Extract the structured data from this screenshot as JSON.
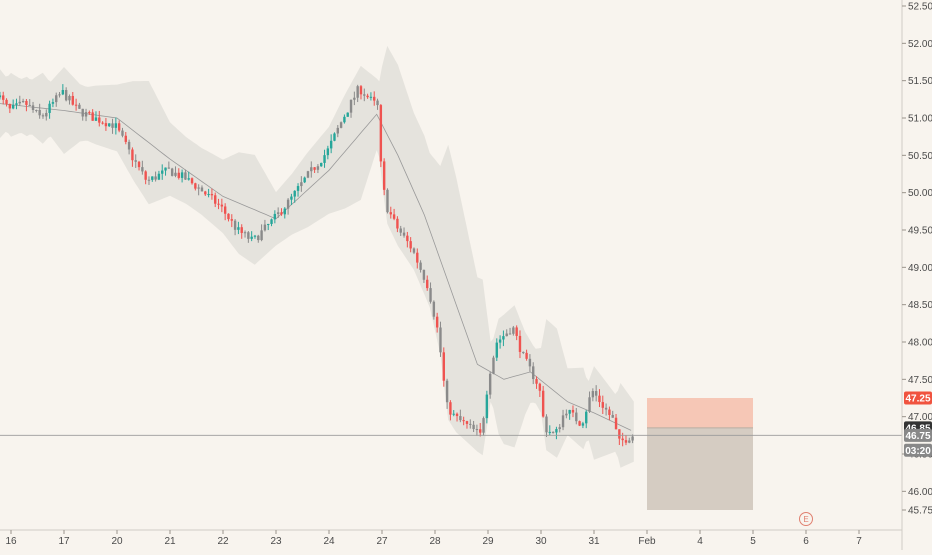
{
  "chart_data": {
    "type": "candlestick",
    "title": "",
    "xlabel": "",
    "ylabel": "",
    "ylim": [
      45.75,
      52.5
    ],
    "grid": false,
    "legend": "none",
    "y_ticks": [
      "52.50",
      "52.00",
      "51.50",
      "51.00",
      "50.50",
      "50.00",
      "49.50",
      "49.00",
      "48.50",
      "48.00",
      "47.50",
      "47.00",
      "46.50",
      "46.00",
      "45.75"
    ],
    "x_ticks": [
      {
        "label": "16",
        "day": 0
      },
      {
        "label": "17",
        "day": 1
      },
      {
        "label": "20",
        "day": 2
      },
      {
        "label": "21",
        "day": 3
      },
      {
        "label": "22",
        "day": 4
      },
      {
        "label": "23",
        "day": 5
      },
      {
        "label": "24",
        "day": 6
      },
      {
        "label": "27",
        "day": 7
      },
      {
        "label": "28",
        "day": 8
      },
      {
        "label": "29",
        "day": 9
      },
      {
        "label": "30",
        "day": 10
      },
      {
        "label": "31",
        "day": 11
      },
      {
        "label": "Feb",
        "day": 12
      },
      {
        "label": "4",
        "day": 13
      },
      {
        "label": "5",
        "day": 14
      },
      {
        "label": "6",
        "day": 15
      },
      {
        "label": "7",
        "day": 16
      }
    ],
    "price_path": [
      [
        -0.3,
        51.4
      ],
      [
        0.0,
        51.1
      ],
      [
        0.3,
        51.2
      ],
      [
        0.6,
        51.0
      ],
      [
        1.0,
        51.35
      ],
      [
        1.3,
        51.1
      ],
      [
        1.6,
        51.0
      ],
      [
        2.0,
        50.9
      ],
      [
        2.3,
        50.5
      ],
      [
        2.6,
        50.15
      ],
      [
        3.0,
        50.3
      ],
      [
        3.3,
        50.2
      ],
      [
        3.6,
        50.05
      ],
      [
        4.0,
        49.8
      ],
      [
        4.3,
        49.5
      ],
      [
        4.6,
        49.35
      ],
      [
        5.0,
        49.65
      ],
      [
        5.3,
        49.9
      ],
      [
        5.6,
        50.2
      ],
      [
        6.0,
        50.55
      ],
      [
        6.3,
        51.0
      ],
      [
        6.6,
        51.4
      ],
      [
        6.95,
        51.15
      ],
      [
        7.0,
        50.45
      ],
      [
        7.1,
        49.85
      ],
      [
        7.3,
        49.55
      ],
      [
        7.6,
        49.25
      ],
      [
        7.9,
        48.75
      ],
      [
        8.1,
        48.1
      ],
      [
        8.25,
        47.15
      ],
      [
        8.4,
        47.0
      ],
      [
        8.6,
        46.9
      ],
      [
        8.9,
        46.75
      ],
      [
        9.05,
        47.55
      ],
      [
        9.2,
        48.0
      ],
      [
        9.5,
        48.2
      ],
      [
        9.7,
        47.8
      ],
      [
        10.0,
        47.4
      ],
      [
        10.1,
        46.85
      ],
      [
        10.3,
        46.75
      ],
      [
        10.5,
        47.1
      ],
      [
        10.8,
        46.9
      ],
      [
        11.0,
        47.35
      ],
      [
        11.2,
        47.15
      ],
      [
        11.4,
        46.95
      ],
      [
        11.5,
        46.65
      ],
      [
        11.75,
        46.75
      ]
    ],
    "moving_average_path": [
      [
        -0.3,
        51.2
      ],
      [
        1.0,
        51.1
      ],
      [
        2.0,
        51.0
      ],
      [
        3.0,
        50.45
      ],
      [
        4.0,
        49.95
      ],
      [
        5.0,
        49.65
      ],
      [
        6.0,
        50.3
      ],
      [
        6.9,
        51.05
      ],
      [
        7.3,
        50.5
      ],
      [
        7.8,
        49.7
      ],
      [
        8.3,
        48.7
      ],
      [
        8.8,
        47.7
      ],
      [
        9.3,
        47.5
      ],
      [
        9.8,
        47.6
      ],
      [
        10.5,
        47.2
      ],
      [
        11.0,
        47.05
      ],
      [
        11.75,
        46.8
      ]
    ],
    "band_width": 0.65,
    "last_candle_day": 11.75,
    "position": {
      "start_day": 12.0,
      "end_day": 14.0,
      "entry": 46.85,
      "stop": 47.25,
      "target": 45.75
    },
    "price_line": 46.75,
    "price_tags": [
      {
        "label": "47.25",
        "value": 47.25,
        "bg": "#f0533f",
        "fg": "#ffffff"
      },
      {
        "label": "46.85",
        "value": 46.85,
        "bg": "#333333",
        "fg": "#ffffff"
      },
      {
        "label": "46.75",
        "value": 46.75,
        "bg": "#888888",
        "fg": "#ffffff"
      },
      {
        "label": "03:20",
        "value": 46.55,
        "bg": "#888888",
        "fg": "#ffffff"
      }
    ],
    "event_marker": {
      "label": "E",
      "day": 15.0
    },
    "colors": {
      "up": "#26a69a",
      "down": "#ef5350",
      "neutral": "#8a8a8a",
      "band": "#e2dfd9",
      "ma_line": "#999999",
      "stop_zone": "#f6c7b6",
      "target_zone": "#d5ccc2",
      "event": "#e08070",
      "price_line": "#9a9a9a",
      "axis_line": "#d0ccc5",
      "background": "#f8f4ee"
    }
  }
}
